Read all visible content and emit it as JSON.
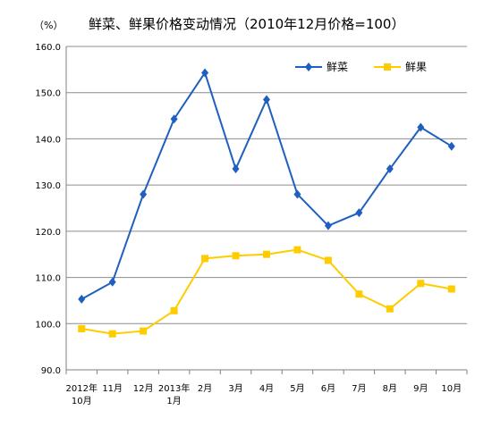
{
  "chart_data": {
    "type": "line",
    "title": "鲜菜、鲜果价格变动情况（2010年12月价格=100）",
    "ylabel": "（%）",
    "xlabel": "",
    "ylim": [
      90,
      160
    ],
    "yticks": [
      "90.0",
      "100.0",
      "110.0",
      "120.0",
      "130.0",
      "140.0",
      "150.0",
      "160.0"
    ],
    "categories": [
      [
        "2012年",
        "10月"
      ],
      [
        "11月"
      ],
      [
        "12月"
      ],
      [
        "2013年",
        "1月"
      ],
      [
        "2月"
      ],
      [
        "3月"
      ],
      [
        "4月"
      ],
      [
        "5月"
      ],
      [
        "6月"
      ],
      [
        "7月"
      ],
      [
        "8月"
      ],
      [
        "9月"
      ],
      [
        "10月"
      ]
    ],
    "series": [
      {
        "name": "鲜菜",
        "color": "#1f5fbf",
        "marker": "diamond",
        "values": [
          105.3,
          109.0,
          128.0,
          144.3,
          154.3,
          133.5,
          148.5,
          128.0,
          121.2,
          124.0,
          133.5,
          142.5,
          138.4
        ]
      },
      {
        "name": "鲜果",
        "color": "#ffcc00",
        "marker": "square",
        "values": [
          98.9,
          97.8,
          98.4,
          102.8,
          114.1,
          114.7,
          115.0,
          116.0,
          113.7,
          106.4,
          103.2,
          108.7,
          107.5
        ]
      }
    ],
    "grid": "horizontal",
    "legend": "top-right"
  }
}
